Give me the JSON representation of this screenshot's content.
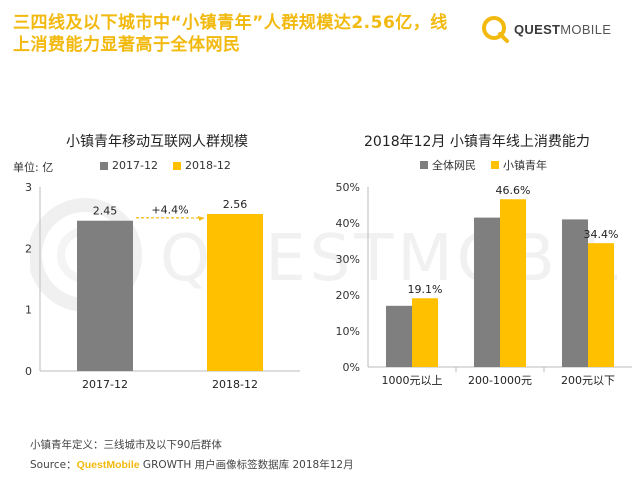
{
  "headline": "三四线及以下城市中“小镇青年”人群规模达2.56亿，线上消费能力显著高于全体网民",
  "logo": {
    "brand_bold": "QUEST",
    "brand_light": "MOBILE"
  },
  "watermark_text": "QUESTMOBILE",
  "colors": {
    "gray": "#7F7F7F",
    "yellow": "#FFC000",
    "accent": "#F2B90F"
  },
  "chart_data": [
    {
      "type": "bar",
      "title": "小镇青年移动互联网人群规模",
      "unit_label": "单位: 亿",
      "categories": [
        "2017-12",
        "2018-12"
      ],
      "values": [
        2.45,
        2.56
      ],
      "value_labels": [
        "2.45",
        "2.56"
      ],
      "legend": [
        "2017-12",
        "2018-12"
      ],
      "ylim": [
        0,
        3
      ],
      "yticks": [
        0,
        1,
        2,
        3
      ],
      "annotation": "+4.4%"
    },
    {
      "type": "bar",
      "title": "2018年12月 小镇青年线上消费能力",
      "categories": [
        "1000元以上",
        "200-1000元",
        "200元以下"
      ],
      "series": [
        {
          "name": "全体网民",
          "values": [
            17.0,
            41.5,
            41.0
          ],
          "labels": [
            "",
            "",
            ""
          ]
        },
        {
          "name": "小镇青年",
          "values": [
            19.1,
            46.6,
            34.4
          ],
          "labels": [
            "19.1%",
            "46.6%",
            "34.4%"
          ]
        }
      ],
      "ylim": [
        0,
        50
      ],
      "yticks": [
        "0%",
        "10%",
        "20%",
        "30%",
        "40%",
        "50%"
      ]
    }
  ],
  "footer": {
    "definition": "小镇青年定义：三线城市及以下90后群体",
    "source_prefix": "Source：",
    "source_brand": "QuestMobile",
    "source_rest": " GROWTH 用户画像标签数据库 2018年12月"
  }
}
